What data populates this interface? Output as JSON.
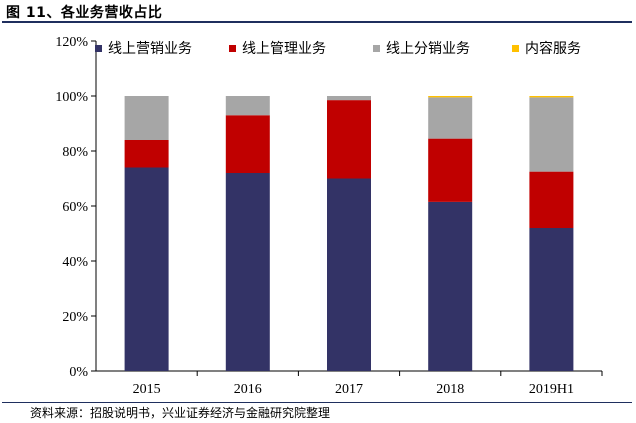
{
  "header": {
    "title": "图 11、各业务营收占比"
  },
  "footer": {
    "source": "资料来源：招股说明书，兴业证券经济与金融研究院整理"
  },
  "chart_data": {
    "type": "bar",
    "stacked": true,
    "title": "",
    "xlabel": "",
    "ylabel": "",
    "categories": [
      "2015",
      "2016",
      "2017",
      "2018",
      "2019H1"
    ],
    "series": [
      {
        "name": "线上营销业务",
        "color": "#333366",
        "values": [
          74,
          72,
          70,
          61.5,
          52
        ]
      },
      {
        "name": "线上管理业务",
        "color": "#c00000",
        "values": [
          10,
          21,
          28.5,
          23,
          20.5
        ]
      },
      {
        "name": "线上分销业务",
        "color": "#a6a6a6",
        "values": [
          16,
          7,
          1.5,
          15,
          27
        ]
      },
      {
        "name": "内容服务",
        "color": "#ffc000",
        "values": [
          0,
          0,
          0,
          0.5,
          0.5
        ]
      }
    ],
    "ylim": [
      0,
      120
    ],
    "yticks": [
      "0%",
      "20%",
      "40%",
      "60%",
      "80%",
      "100%",
      "120%"
    ],
    "legend_position": "top",
    "grid": false
  }
}
